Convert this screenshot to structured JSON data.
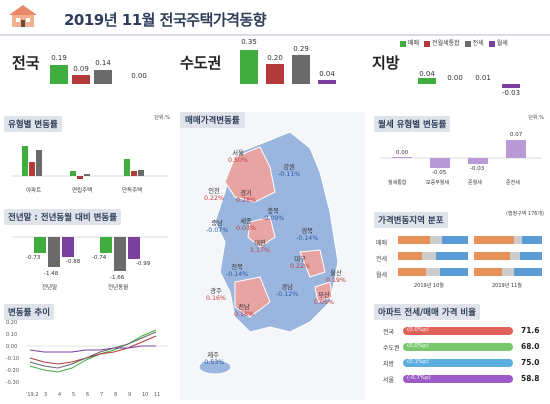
{
  "header": {
    "title": "2019년 11월 전국주택가격동향"
  },
  "legend": {
    "items": [
      {
        "label": "매매",
        "color": "#3fae3f"
      },
      {
        "label": "전월세통합",
        "color": "#b23a3a"
      },
      {
        "label": "전세",
        "color": "#6a6a6a"
      },
      {
        "label": "월세",
        "color": "#7b3fa0"
      }
    ]
  },
  "regions": [
    {
      "name": "전국",
      "values": [
        "0.19",
        "0.09",
        "0.14",
        "0.00"
      ]
    },
    {
      "name": "수도권",
      "values": [
        "0.35",
        "0.20",
        "0.29",
        "0.04"
      ]
    },
    {
      "name": "지방",
      "values": [
        "0.04",
        "0.00",
        "0.01",
        "-0.03"
      ]
    }
  ],
  "panels": {
    "type_change": {
      "title": "유형별 변동률",
      "unit": "단위:%",
      "legend": [
        "매매",
        "전월세통합",
        "전세",
        "월세"
      ],
      "categories": [
        "아파트",
        "연립주택",
        "단독주택"
      ],
      "values": [
        [
          "0.25",
          "0.12",
          "0.22",
          "0.01"
        ],
        [
          "0.04",
          "-0.02",
          "0.02",
          "0.00"
        ],
        [
          "0.14",
          "0.04",
          "0.05",
          "-0.00"
        ]
      ]
    },
    "yoy": {
      "title": "전년말 : 전년동월 대비 변동률",
      "legend": [
        "매매",
        "전세",
        "월세"
      ],
      "groups": [
        {
          "label": "전년말",
          "values": [
            "-0.73",
            "-1.48",
            "-0.88"
          ]
        },
        {
          "label": "전년동월",
          "values": [
            "-0.74",
            "-1.66",
            "-0.99"
          ]
        }
      ]
    },
    "trend": {
      "title": "변동률 추이",
      "legend": [
        "매매",
        "전월세통합",
        "전세",
        "월세"
      ],
      "yticks": [
        "0.20",
        "0.10",
        "0.00",
        "-0.10",
        "-0.20",
        "-0.30"
      ],
      "xticks": [
        "'19.2",
        "3",
        "4",
        "5",
        "6",
        "7",
        "8",
        "9",
        "10",
        "11"
      ]
    },
    "map": {
      "title": "매매가격변동률"
    },
    "monthly_rent": {
      "title": "월세 유형별 변동률",
      "unit": "단위:%",
      "categories": [
        "월세통합",
        "보증부월세",
        "준월세",
        "준전세"
      ],
      "values": [
        "0.00",
        "-0.05",
        "-0.03",
        "0.07"
      ]
    },
    "distribution": {
      "title": "가격변동지역 분포",
      "unit": "(행정구역 176개)",
      "rows": [
        "매매",
        "전세",
        "월세"
      ],
      "months": [
        "2019년 10월",
        "2019년 11월"
      ]
    },
    "apt_ratio": {
      "title": "아파트 전세/매매 가격 비율",
      "rows": [
        {
          "name": "전국",
          "change": "(0.0%p)",
          "value": "71.6",
          "color": "#e0605a"
        },
        {
          "name": "수도권",
          "change": "(0.0%p)",
          "value": "68.0",
          "color": "#78c86e"
        },
        {
          "name": "지방",
          "change": "(0.1%p)",
          "value": "75.0",
          "color": "#5aaee0"
        },
        {
          "name": "서울",
          "change": "(-0.7%p)",
          "value": "58.8",
          "color": "#9b5ac8"
        }
      ]
    }
  },
  "map_labels": [
    {
      "name": "서울",
      "value": "0.50%"
    },
    {
      "name": "인천",
      "value": "0.22%"
    },
    {
      "name": "경기",
      "value": "0.28%"
    },
    {
      "name": "강원",
      "value": "-0.11%"
    },
    {
      "name": "충북",
      "value": "-0.09%"
    },
    {
      "name": "충남",
      "value": "-0.07%"
    },
    {
      "name": "세종",
      "value": "0.03%"
    },
    {
      "name": "대전",
      "value": "1.17%"
    },
    {
      "name": "경북",
      "value": "-0.14%"
    },
    {
      "name": "전북",
      "value": "-0.14%"
    },
    {
      "name": "대구",
      "value": "0.22%"
    },
    {
      "name": "울산",
      "value": "0.19%"
    },
    {
      "name": "경남",
      "value": "-0.12%"
    },
    {
      "name": "광주",
      "value": "0.16%"
    },
    {
      "name": "전남",
      "value": "0.18%"
    },
    {
      "name": "부산",
      "value": "0.05%"
    },
    {
      "name": "제주",
      "value": "-0.53%"
    }
  ]
}
